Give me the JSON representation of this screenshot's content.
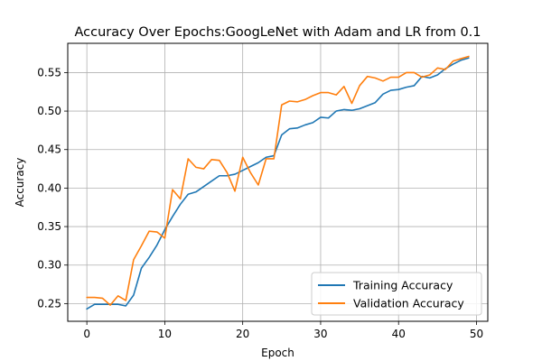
{
  "chart_data": {
    "type": "line",
    "title": "Accuracy Over Epochs:GoogLeNet with Adam and LR from 0.1",
    "xlabel": "Epoch",
    "ylabel": "Accuracy",
    "xlim": [
      -2.45,
      51.45
    ],
    "ylim": [
      0.227,
      0.588
    ],
    "xticks": [
      0,
      10,
      20,
      30,
      40,
      50
    ],
    "yticks": [
      0.25,
      0.3,
      0.35,
      0.4,
      0.45,
      0.5,
      0.55
    ],
    "ytick_labels": [
      "0.25",
      "0.30",
      "0.35",
      "0.40",
      "0.45",
      "0.50",
      "0.55"
    ],
    "grid": true,
    "legend_position": "lower-right",
    "x": [
      0,
      1,
      2,
      3,
      4,
      5,
      6,
      7,
      8,
      9,
      10,
      11,
      12,
      13,
      14,
      15,
      16,
      17,
      18,
      19,
      20,
      21,
      22,
      23,
      24,
      25,
      26,
      27,
      28,
      29,
      30,
      31,
      32,
      33,
      34,
      35,
      36,
      37,
      38,
      39,
      40,
      41,
      42,
      43,
      44,
      45,
      46,
      47,
      48,
      49
    ],
    "series": [
      {
        "name": "Training Accuracy",
        "color": "#1f77b4",
        "values": [
          0.243,
          0.249,
          0.249,
          0.249,
          0.249,
          0.247,
          0.261,
          0.296,
          0.31,
          0.326,
          0.346,
          0.363,
          0.379,
          0.392,
          0.395,
          0.402,
          0.409,
          0.416,
          0.416,
          0.418,
          0.423,
          0.428,
          0.433,
          0.44,
          0.442,
          0.469,
          0.477,
          0.478,
          0.482,
          0.485,
          0.492,
          0.491,
          0.5,
          0.502,
          0.501,
          0.503,
          0.507,
          0.511,
          0.522,
          0.527,
          0.528,
          0.531,
          0.533,
          0.545,
          0.543,
          0.547,
          0.555,
          0.561,
          0.566,
          0.569
        ]
      },
      {
        "name": "Validation Accuracy",
        "color": "#ff7f0e",
        "values": [
          0.258,
          0.258,
          0.257,
          0.248,
          0.26,
          0.254,
          0.307,
          0.325,
          0.344,
          0.343,
          0.335,
          0.398,
          0.386,
          0.438,
          0.427,
          0.425,
          0.437,
          0.436,
          0.42,
          0.396,
          0.44,
          0.42,
          0.404,
          0.438,
          0.438,
          0.508,
          0.513,
          0.512,
          0.515,
          0.52,
          0.524,
          0.524,
          0.521,
          0.532,
          0.51,
          0.533,
          0.545,
          0.543,
          0.539,
          0.544,
          0.544,
          0.55,
          0.55,
          0.544,
          0.547,
          0.556,
          0.554,
          0.565,
          0.568,
          0.571
        ]
      }
    ]
  }
}
